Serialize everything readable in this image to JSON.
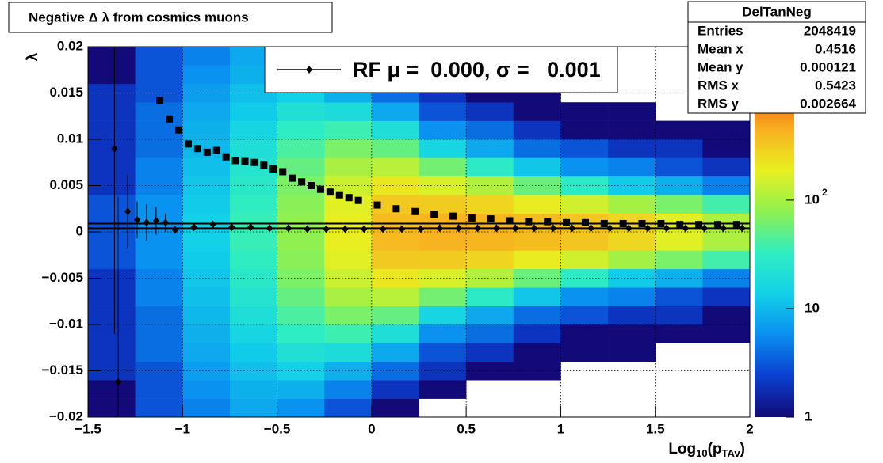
{
  "chart_data": {
    "type": "hist2d",
    "title": "Negative Δ λ from cosmics muons",
    "xlabel": [
      "Log",
      "10",
      "(p",
      "TAv",
      ")"
    ],
    "ylabel": "λ",
    "xlim": [
      -1.5,
      2
    ],
    "ylim": [
      -0.02,
      0.02
    ],
    "xticks": [
      {
        "value": -1.5,
        "label": "−1.5"
      },
      {
        "value": -1,
        "label": "−1"
      },
      {
        "value": -0.5,
        "label": "−0.5"
      },
      0,
      0.5,
      1,
      1.5,
      2
    ],
    "yticks": [
      {
        "value": -0.02,
        "label": "−0.02"
      },
      {
        "value": -0.015,
        "label": "−0.015"
      },
      {
        "value": -0.01,
        "label": "−0.01"
      },
      {
        "value": -0.005,
        "label": "−0.005"
      },
      0,
      0.005,
      0.01,
      0.015,
      0.02
    ],
    "grid": true,
    "xbins": [
      -1.5,
      -1.25,
      -1,
      -0.75,
      -0.5,
      -0.25,
      0,
      0.25,
      0.5,
      0.75,
      1,
      1.25,
      1.5,
      1.75,
      2
    ],
    "ybins": [
      -0.02,
      -0.018,
      -0.016,
      -0.014,
      -0.012,
      -0.01,
      -0.008,
      -0.006,
      -0.004,
      -0.002,
      0,
      0.002,
      0.004,
      0.006,
      0.008,
      0.01,
      0.012,
      0.014,
      0.016,
      0.018,
      0.02
    ],
    "z": [
      [
        1,
        3,
        5,
        8,
        6,
        3,
        1,
        0,
        0,
        0,
        0,
        0,
        0,
        0
      ],
      [
        1,
        3,
        6,
        9,
        9,
        5,
        2,
        1,
        0,
        0,
        0,
        0,
        0,
        0
      ],
      [
        2,
        3,
        7,
        11,
        14,
        9,
        4,
        2,
        1,
        1,
        0,
        0,
        0,
        0
      ],
      [
        2,
        4,
        8,
        13,
        21,
        19,
        8,
        3,
        2,
        1,
        1,
        1,
        0,
        0
      ],
      [
        2,
        4,
        9,
        16,
        31,
        37,
        20,
        6,
        4,
        2,
        1,
        1,
        1,
        1
      ],
      [
        2,
        4,
        10,
        20,
        42,
        65,
        54,
        16,
        8,
        4,
        3,
        2,
        2,
        1
      ],
      [
        2,
        5,
        11,
        24,
        54,
        101,
        119,
        61,
        29,
        12,
        6,
        5,
        3,
        2
      ],
      [
        2,
        5,
        12,
        28,
        66,
        141,
        216,
        162,
        112,
        56,
        29,
        13,
        9,
        5
      ],
      [
        3,
        6,
        13,
        32,
        75,
        176,
        320,
        312,
        273,
        199,
        149,
        97,
        65,
        39
      ],
      [
        3,
        6,
        14,
        35,
        79,
        194,
        390,
        432,
        426,
        387,
        342,
        265,
        176,
        106
      ],
      [
        3,
        6,
        14,
        35,
        79,
        194,
        390,
        432,
        426,
        387,
        342,
        265,
        176,
        106
      ],
      [
        3,
        6,
        13,
        32,
        75,
        176,
        320,
        312,
        273,
        199,
        149,
        97,
        65,
        39
      ],
      [
        2,
        5,
        12,
        28,
        66,
        141,
        216,
        162,
        112,
        56,
        29,
        13,
        9,
        5
      ],
      [
        2,
        5,
        11,
        24,
        54,
        101,
        119,
        61,
        29,
        12,
        6,
        5,
        3,
        2
      ],
      [
        2,
        4,
        10,
        20,
        42,
        65,
        54,
        16,
        8,
        4,
        3,
        2,
        2,
        1
      ],
      [
        2,
        4,
        9,
        16,
        31,
        37,
        20,
        6,
        4,
        2,
        1,
        1,
        1,
        1
      ],
      [
        2,
        4,
        8,
        13,
        21,
        19,
        8,
        3,
        2,
        1,
        1,
        1,
        0,
        0
      ],
      [
        2,
        3,
        7,
        11,
        14,
        9,
        4,
        2,
        1,
        1,
        0,
        0,
        0,
        0
      ],
      [
        1,
        3,
        6,
        9,
        9,
        5,
        2,
        1,
        0,
        0,
        0,
        0,
        0,
        0
      ],
      [
        1,
        3,
        5,
        8,
        6,
        3,
        1,
        0,
        0,
        0,
        0,
        0,
        0,
        0
      ]
    ],
    "zlim": [
      1,
      2600
    ],
    "zlog": true,
    "zticks": [
      1,
      10,
      {
        "value": 100,
        "label": "10",
        "exponent": "2"
      }
    ],
    "palette": [
      "#120a78",
      "#0b3fd0",
      "#0a8ff0",
      "#12d0e8",
      "#30eec0",
      "#90f050",
      "#e8f020",
      "#f8b020",
      "#f05010",
      "#c00808"
    ],
    "series": [
      {
        "name": "RF μ =  0.000, σ =   0.001",
        "color": "#000000",
        "marker": "diamond",
        "x": [
          -1.36,
          -1.34,
          -1.29,
          -1.24,
          -1.19,
          -1.14,
          -1.09,
          -1.04,
          -0.94,
          -0.84,
          -0.74,
          -0.64,
          -0.54,
          -0.44,
          -0.34,
          -0.24,
          -0.14,
          -0.04,
          0.06,
          0.16,
          0.26,
          0.36,
          0.46,
          0.56,
          0.66,
          0.76,
          0.86,
          0.96,
          1.06,
          1.16,
          1.26,
          1.36,
          1.46,
          1.56,
          1.66,
          1.76,
          1.86,
          1.96
        ],
        "values": [
          0.009,
          -0.0162,
          0.0022,
          0.0013,
          0.001,
          0.0012,
          0.001,
          0.0002,
          0.0005,
          0.0008,
          0.0005,
          0.0005,
          0.0004,
          0.0004,
          0.0003,
          0.0003,
          0.0003,
          0.0003,
          0.0003,
          0.0003,
          0.0003,
          0.0004,
          0.0004,
          0.0004,
          0.0004,
          0.0004,
          0.0004,
          0.0004,
          0.0004,
          0.0004,
          0.0004,
          0.0004,
          0.0004,
          0.0004,
          0.0004,
          0.0004,
          0.0004,
          0.0004
        ],
        "errors": [
          0.02,
          0.02,
          0.004,
          0.002,
          0.002,
          0.0015,
          0.001,
          0.0004,
          0.0003,
          0.0003,
          0.0002,
          0.0002,
          0.0002,
          0.0002,
          0.0002,
          0.0002,
          0.0002,
          0.0002,
          0.0002,
          0.0002,
          0.0002,
          0.0002,
          0.0002,
          0.0002,
          0.0002,
          0.0002,
          0.0002,
          0.0002,
          0.0002,
          0.0002,
          0.0002,
          0.0002,
          0.0002,
          0.0002,
          0.0002,
          0.0002,
          0.0002,
          0.0002
        ]
      },
      {
        "color": "#000000",
        "marker": "square",
        "x": [
          -1.12,
          -1.07,
          -1.02,
          -0.97,
          -0.92,
          -0.87,
          -0.82,
          -0.77,
          -0.72,
          -0.67,
          -0.62,
          -0.57,
          -0.52,
          -0.47,
          -0.42,
          -0.37,
          -0.32,
          -0.27,
          -0.22,
          -0.17,
          -0.12,
          -0.07,
          0.03,
          0.13,
          0.23,
          0.33,
          0.43,
          0.53,
          0.63,
          0.73,
          0.83,
          0.93,
          1.03,
          1.13,
          1.23,
          1.33,
          1.43,
          1.53,
          1.63,
          1.73,
          1.83,
          1.93
        ],
        "values": [
          0.0142,
          0.0122,
          0.011,
          0.0095,
          0.009,
          0.0086,
          0.0088,
          0.0081,
          0.0077,
          0.0076,
          0.0075,
          0.0072,
          0.0068,
          0.0065,
          0.0058,
          0.0054,
          0.005,
          0.0046,
          0.0043,
          0.004,
          0.0037,
          0.0034,
          0.0029,
          0.0025,
          0.0022,
          0.0019,
          0.0017,
          0.0015,
          0.0014,
          0.0012,
          0.0011,
          0.0011,
          0.001,
          0.001,
          0.0009,
          0.0009,
          0.0009,
          0.0009,
          0.0008,
          0.0008,
          0.0008,
          0.0008
        ]
      }
    ],
    "hlines": [
      0.0009,
      0.0004
    ],
    "stats": {
      "title": "DelTanNeg",
      "rows": [
        {
          "label": "Entries",
          "value": 2048419
        },
        {
          "label": "Mean x",
          "value": 0.4516
        },
        {
          "label": "Mean y",
          "value": 0.000121
        },
        {
          "label": "RMS x",
          "value": 0.5423
        },
        {
          "label": "RMS y",
          "value": 0.002664
        }
      ]
    }
  }
}
